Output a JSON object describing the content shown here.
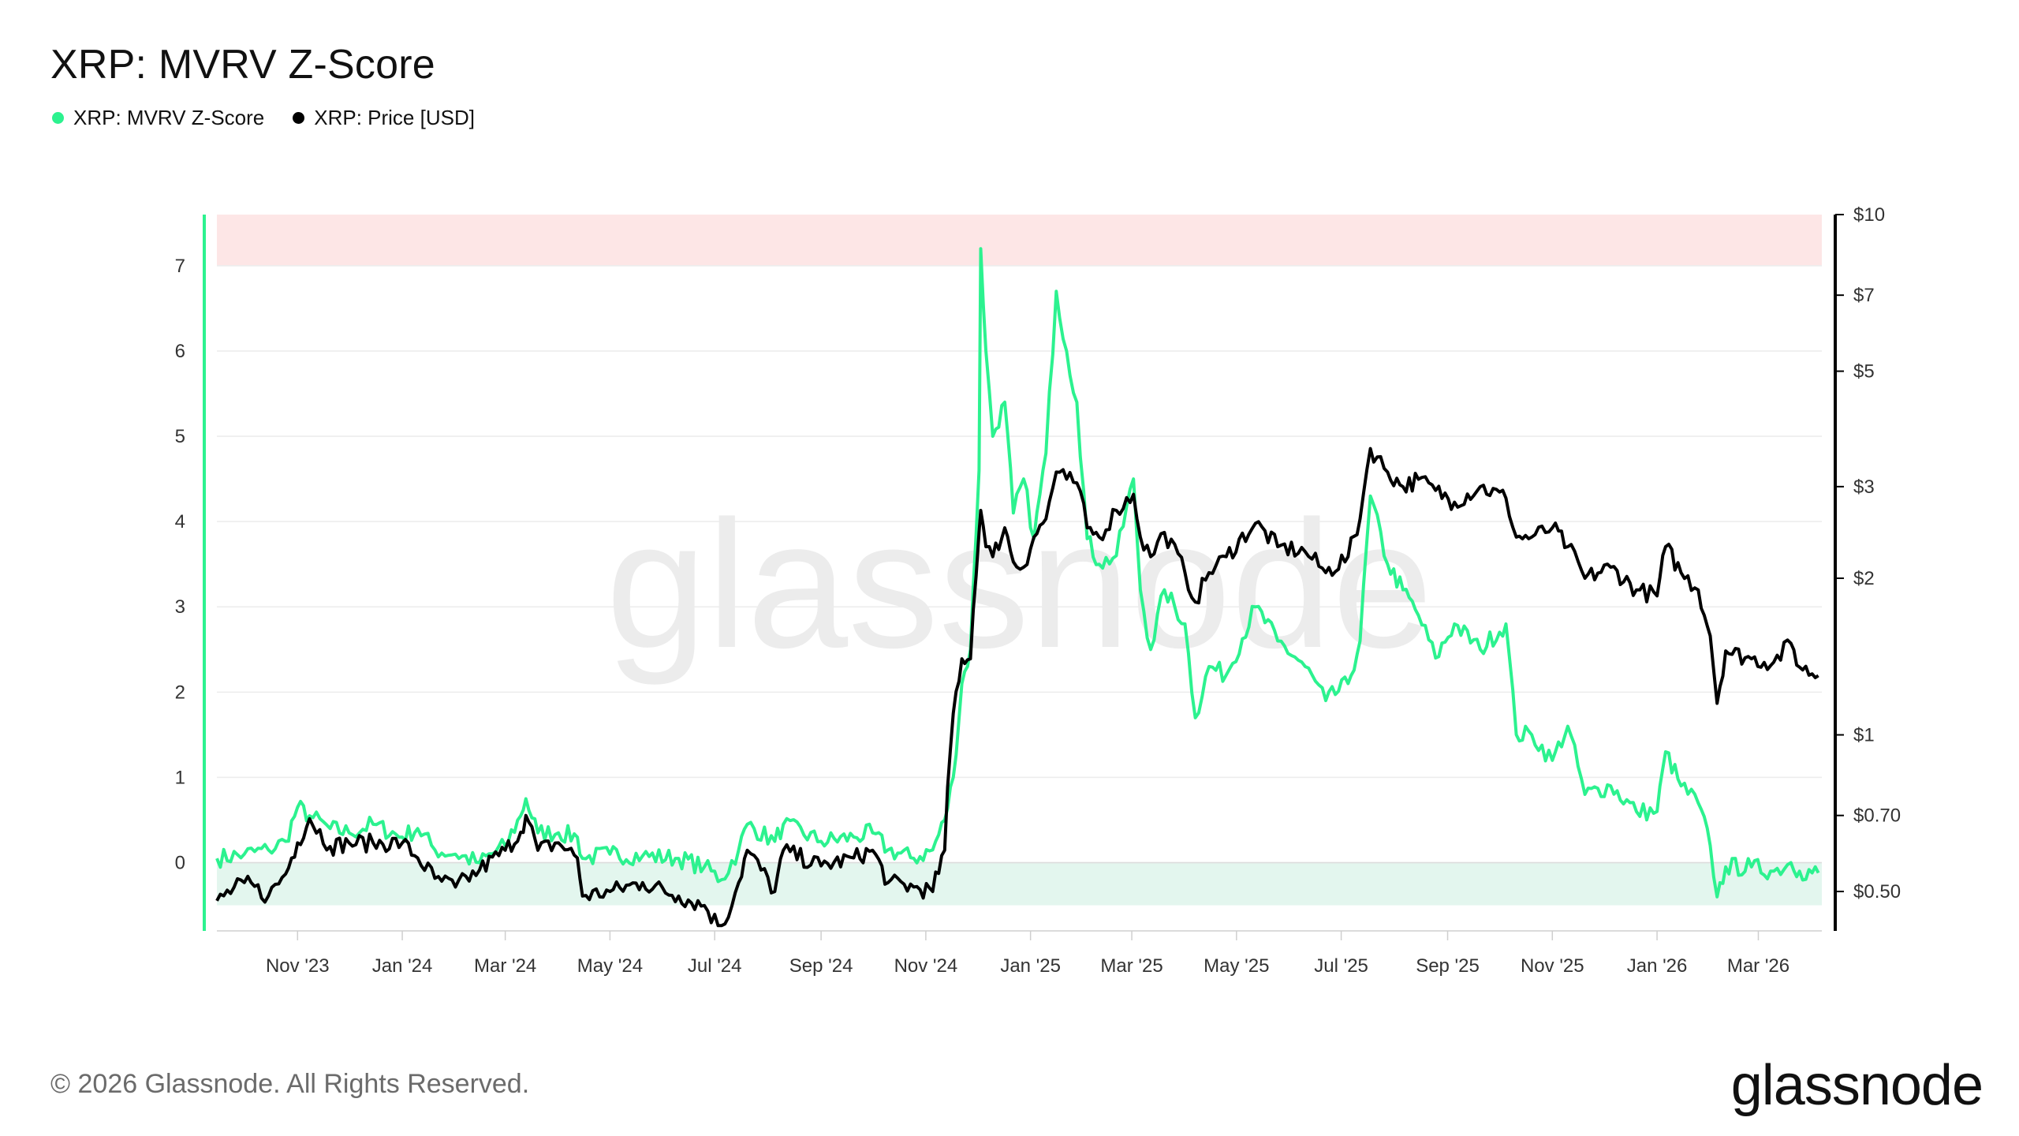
{
  "title": "XRP: MVRV Z-Score",
  "legend": [
    {
      "label": "XRP: MVRV Z-Score",
      "color": "#2cf28f"
    },
    {
      "label": "XRP: Price [USD]",
      "color": "#000000"
    }
  ],
  "footer": "© 2026 Glassnode. All Rights Reserved.",
  "brand": "glassnode",
  "watermark": "glassnode",
  "colors": {
    "zscore": "#2cf28f",
    "price": "#000000",
    "high_zone": "#fde6e6",
    "low_zone": "#e3f6ee",
    "grid": "#ececec"
  },
  "chart_data": {
    "type": "line",
    "title": "XRP: MVRV Z-Score",
    "x_range": [
      "2023-09-15",
      "2026-04-07"
    ],
    "x_ticks": [
      "Nov '23",
      "Jan '24",
      "Mar '24",
      "May '24",
      "Jul '24",
      "Sep '24",
      "Nov '24",
      "Jan '25",
      "Mar '25",
      "May '25",
      "Jul '25",
      "Sep '25",
      "Nov '25",
      "Jan '26",
      "Mar '26"
    ],
    "y_left": {
      "range": [
        -0.8,
        7.6
      ],
      "ticks": [
        0,
        1,
        2,
        3,
        4,
        5,
        6,
        7
      ]
    },
    "y_right": {
      "scale": "log",
      "range": [
        0.42,
        10
      ],
      "ticks": [
        {
          "value": 10,
          "label": "$10"
        },
        {
          "value": 7,
          "label": "$7"
        },
        {
          "value": 5,
          "label": "$5"
        },
        {
          "value": 3,
          "label": "$3"
        },
        {
          "value": 2,
          "label": "$2"
        },
        {
          "value": 1,
          "label": "$1"
        },
        {
          "value": 0.7,
          "label": "$0.70"
        },
        {
          "value": 0.5,
          "label": "$0.50"
        }
      ]
    },
    "bands": [
      {
        "name": "high",
        "from": 7,
        "to": 7.6,
        "axis": "left"
      },
      {
        "name": "low",
        "from": -0.5,
        "to": 0,
        "axis": "left"
      }
    ],
    "series": [
      {
        "name": "XRP: MVRV Z-Score",
        "axis": "left",
        "points": [
          [
            "2023-09-15",
            0.05
          ],
          [
            "2023-10-01",
            0.1
          ],
          [
            "2023-10-15",
            0.15
          ],
          [
            "2023-10-25",
            0.25
          ],
          [
            "2023-11-01",
            0.65
          ],
          [
            "2023-11-08",
            0.55
          ],
          [
            "2023-11-20",
            0.4
          ],
          [
            "2023-12-01",
            0.35
          ],
          [
            "2023-12-15",
            0.45
          ],
          [
            "2024-01-01",
            0.3
          ],
          [
            "2024-01-10",
            0.4
          ],
          [
            "2024-01-20",
            0.15
          ],
          [
            "2024-02-01",
            0.1
          ],
          [
            "2024-02-15",
            0.0
          ],
          [
            "2024-03-01",
            0.2
          ],
          [
            "2024-03-10",
            0.55
          ],
          [
            "2024-03-13",
            0.75
          ],
          [
            "2024-03-20",
            0.35
          ],
          [
            "2024-04-01",
            0.35
          ],
          [
            "2024-04-12",
            0.3
          ],
          [
            "2024-04-15",
            0.05
          ],
          [
            "2024-05-01",
            0.1
          ],
          [
            "2024-05-20",
            0.08
          ],
          [
            "2024-06-10",
            0.05
          ],
          [
            "2024-06-25",
            -0.05
          ],
          [
            "2024-07-05",
            -0.2
          ],
          [
            "2024-07-15",
            0.15
          ],
          [
            "2024-07-20",
            0.45
          ],
          [
            "2024-08-05",
            0.25
          ],
          [
            "2024-08-10",
            0.45
          ],
          [
            "2024-09-01",
            0.25
          ],
          [
            "2024-09-20",
            0.3
          ],
          [
            "2024-10-01",
            0.35
          ],
          [
            "2024-10-10",
            0.15
          ],
          [
            "2024-10-25",
            0.05
          ],
          [
            "2024-11-05",
            0.15
          ],
          [
            "2024-11-12",
            0.5
          ],
          [
            "2024-11-17",
            1.0
          ],
          [
            "2024-11-22",
            2.1
          ],
          [
            "2024-11-27",
            2.5
          ],
          [
            "2024-12-02",
            4.6
          ],
          [
            "2024-12-03",
            7.2
          ],
          [
            "2024-12-06",
            6.0
          ],
          [
            "2024-12-10",
            5.0
          ],
          [
            "2024-12-17",
            5.4
          ],
          [
            "2024-12-22",
            4.1
          ],
          [
            "2024-12-28",
            4.5
          ],
          [
            "2025-01-03",
            3.8
          ],
          [
            "2025-01-10",
            4.8
          ],
          [
            "2025-01-16",
            6.7
          ],
          [
            "2025-01-22",
            6.0
          ],
          [
            "2025-01-28",
            5.4
          ],
          [
            "2025-02-03",
            3.8
          ],
          [
            "2025-02-10",
            3.5
          ],
          [
            "2025-02-20",
            3.6
          ],
          [
            "2025-03-02",
            4.5
          ],
          [
            "2025-03-06",
            3.2
          ],
          [
            "2025-03-12",
            2.5
          ],
          [
            "2025-03-20",
            3.2
          ],
          [
            "2025-04-01",
            2.8
          ],
          [
            "2025-04-07",
            1.7
          ],
          [
            "2025-04-15",
            2.3
          ],
          [
            "2025-04-25",
            2.2
          ],
          [
            "2025-05-12",
            3.0
          ],
          [
            "2025-05-25",
            2.6
          ],
          [
            "2025-06-10",
            2.3
          ],
          [
            "2025-06-22",
            1.9
          ],
          [
            "2025-07-05",
            2.1
          ],
          [
            "2025-07-12",
            2.6
          ],
          [
            "2025-07-18",
            4.3
          ],
          [
            "2025-07-28",
            3.5
          ],
          [
            "2025-08-06",
            3.2
          ],
          [
            "2025-08-15",
            2.9
          ],
          [
            "2025-08-25",
            2.4
          ],
          [
            "2025-09-05",
            2.8
          ],
          [
            "2025-09-20",
            2.5
          ],
          [
            "2025-10-05",
            2.8
          ],
          [
            "2025-10-11",
            1.5
          ],
          [
            "2025-10-20",
            1.5
          ],
          [
            "2025-11-01",
            1.2
          ],
          [
            "2025-11-10",
            1.6
          ],
          [
            "2025-11-20",
            0.8
          ],
          [
            "2025-12-05",
            0.9
          ],
          [
            "2025-12-20",
            0.6
          ],
          [
            "2026-01-01",
            0.6
          ],
          [
            "2026-01-06",
            1.3
          ],
          [
            "2026-01-15",
            0.9
          ],
          [
            "2026-01-25",
            0.7
          ],
          [
            "2026-02-01",
            0.2
          ],
          [
            "2026-02-05",
            -0.4
          ],
          [
            "2026-02-10",
            -0.05
          ],
          [
            "2026-02-25",
            -0.05
          ],
          [
            "2026-03-10",
            -0.1
          ],
          [
            "2026-03-20",
            0.0
          ],
          [
            "2026-03-25",
            -0.1
          ],
          [
            "2026-04-05",
            -0.12
          ]
        ]
      },
      {
        "name": "XRP: Price [USD]",
        "axis": "right",
        "points": [
          [
            "2023-09-15",
            0.48
          ],
          [
            "2023-10-01",
            0.52
          ],
          [
            "2023-10-15",
            0.49
          ],
          [
            "2023-10-25",
            0.54
          ],
          [
            "2023-11-01",
            0.62
          ],
          [
            "2023-11-08",
            0.69
          ],
          [
            "2023-11-20",
            0.61
          ],
          [
            "2023-12-01",
            0.62
          ],
          [
            "2023-12-15",
            0.62
          ],
          [
            "2024-01-01",
            0.62
          ],
          [
            "2024-01-10",
            0.58
          ],
          [
            "2024-01-20",
            0.53
          ],
          [
            "2024-02-01",
            0.51
          ],
          [
            "2024-02-15",
            0.55
          ],
          [
            "2024-03-01",
            0.6
          ],
          [
            "2024-03-10",
            0.65
          ],
          [
            "2024-03-13",
            0.7
          ],
          [
            "2024-03-20",
            0.6
          ],
          [
            "2024-04-01",
            0.62
          ],
          [
            "2024-04-12",
            0.58
          ],
          [
            "2024-04-15",
            0.49
          ],
          [
            "2024-05-01",
            0.5
          ],
          [
            "2024-05-20",
            0.52
          ],
          [
            "2024-06-10",
            0.49
          ],
          [
            "2024-06-25",
            0.47
          ],
          [
            "2024-07-05",
            0.42
          ],
          [
            "2024-07-15",
            0.52
          ],
          [
            "2024-07-20",
            0.6
          ],
          [
            "2024-08-05",
            0.5
          ],
          [
            "2024-08-10",
            0.6
          ],
          [
            "2024-09-01",
            0.56
          ],
          [
            "2024-09-20",
            0.58
          ],
          [
            "2024-10-01",
            0.6
          ],
          [
            "2024-10-10",
            0.52
          ],
          [
            "2024-10-25",
            0.51
          ],
          [
            "2024-11-05",
            0.5
          ],
          [
            "2024-11-12",
            0.6
          ],
          [
            "2024-11-17",
            1.1
          ],
          [
            "2024-11-22",
            1.4
          ],
          [
            "2024-11-27",
            1.4
          ],
          [
            "2024-12-02",
            2.45
          ],
          [
            "2024-12-03",
            2.7
          ],
          [
            "2024-12-06",
            2.3
          ],
          [
            "2024-12-10",
            2.2
          ],
          [
            "2024-12-17",
            2.5
          ],
          [
            "2024-12-22",
            2.15
          ],
          [
            "2024-12-28",
            2.1
          ],
          [
            "2025-01-03",
            2.4
          ],
          [
            "2025-01-10",
            2.6
          ],
          [
            "2025-01-16",
            3.2
          ],
          [
            "2025-01-22",
            3.1
          ],
          [
            "2025-01-28",
            3.05
          ],
          [
            "2025-02-03",
            2.5
          ],
          [
            "2025-02-10",
            2.4
          ],
          [
            "2025-02-20",
            2.7
          ],
          [
            "2025-03-02",
            2.9
          ],
          [
            "2025-03-06",
            2.4
          ],
          [
            "2025-03-12",
            2.2
          ],
          [
            "2025-03-20",
            2.45
          ],
          [
            "2025-04-01",
            2.05
          ],
          [
            "2025-04-07",
            1.8
          ],
          [
            "2025-04-15",
            2.05
          ],
          [
            "2025-04-25",
            2.2
          ],
          [
            "2025-05-12",
            2.55
          ],
          [
            "2025-05-25",
            2.3
          ],
          [
            "2025-06-10",
            2.25
          ],
          [
            "2025-06-22",
            2.05
          ],
          [
            "2025-07-05",
            2.2
          ],
          [
            "2025-07-12",
            2.6
          ],
          [
            "2025-07-18",
            3.55
          ],
          [
            "2025-07-28",
            3.2
          ],
          [
            "2025-08-06",
            3.0
          ],
          [
            "2025-08-15",
            3.1
          ],
          [
            "2025-08-25",
            2.95
          ],
          [
            "2025-09-05",
            2.8
          ],
          [
            "2025-09-20",
            3.0
          ],
          [
            "2025-10-05",
            2.85
          ],
          [
            "2025-10-11",
            2.4
          ],
          [
            "2025-10-20",
            2.4
          ],
          [
            "2025-11-01",
            2.5
          ],
          [
            "2025-11-10",
            2.3
          ],
          [
            "2025-11-20",
            2.0
          ],
          [
            "2025-12-05",
            2.1
          ],
          [
            "2025-12-20",
            1.9
          ],
          [
            "2026-01-01",
            1.85
          ],
          [
            "2026-01-06",
            2.3
          ],
          [
            "2026-01-15",
            2.05
          ],
          [
            "2026-01-25",
            1.9
          ],
          [
            "2026-02-01",
            1.55
          ],
          [
            "2026-02-05",
            1.15
          ],
          [
            "2026-02-10",
            1.45
          ],
          [
            "2026-02-25",
            1.4
          ],
          [
            "2026-03-10",
            1.38
          ],
          [
            "2026-03-20",
            1.5
          ],
          [
            "2026-03-25",
            1.35
          ],
          [
            "2026-04-05",
            1.3
          ]
        ]
      }
    ]
  }
}
